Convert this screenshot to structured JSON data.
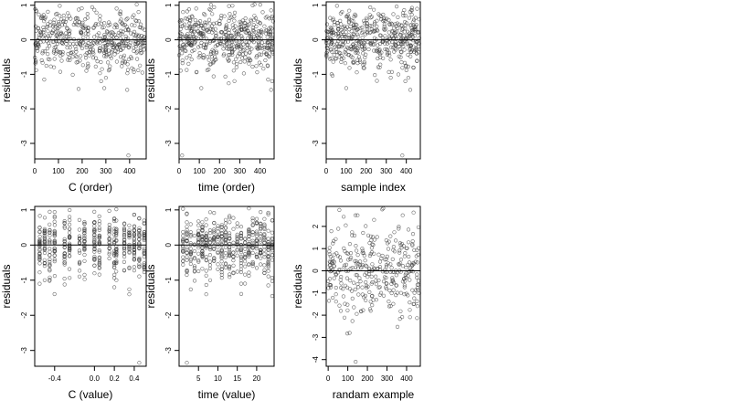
{
  "chart_data": [
    {
      "type": "scatter",
      "xlabel": "C (order)",
      "ylabel": "residuals",
      "xlim": [
        0,
        470
      ],
      "ylim": [
        -3.45,
        1.1
      ],
      "xticks": [
        0,
        100,
        200,
        300,
        400
      ],
      "xtick_labels": [
        "0",
        "100",
        "200",
        "300",
        "400"
      ],
      "yticks": [
        -3,
        -2,
        -1,
        0,
        1
      ],
      "ytick_labels": [
        "-3",
        "-2",
        "-1",
        "0",
        "1"
      ],
      "reference_line_y": 0,
      "points": {
        "n": 470,
        "xmin": 0,
        "xmax": 465,
        "ymean": 0,
        "ysd": 0.42,
        "outliers": [
          [
            280,
            -1.2
          ],
          [
            300,
            -1.1
          ],
          [
            390,
            -1.45
          ],
          [
            395,
            -3.35
          ],
          [
            40,
            -1.15
          ]
        ]
      }
    },
    {
      "type": "scatter",
      "xlabel": "time (order)",
      "ylabel": "residuals",
      "xlim": [
        0,
        470
      ],
      "ylim": [
        -3.45,
        1.1
      ],
      "xticks": [
        0,
        100,
        200,
        300,
        400
      ],
      "xtick_labels": [
        "0",
        "100",
        "200",
        "300",
        "400"
      ],
      "yticks": [
        -3,
        -2,
        -1,
        0,
        1
      ],
      "ytick_labels": [
        "-3",
        "-2",
        "-1",
        "0",
        "1"
      ],
      "reference_line_y": 0,
      "points": {
        "n": 470,
        "xmin": 0,
        "xmax": 465,
        "ymean": 0,
        "ysd": 0.42,
        "outliers": [
          [
            15,
            -3.35
          ],
          [
            110,
            -1.4
          ],
          [
            440,
            -1.15
          ],
          [
            455,
            -1.45
          ],
          [
            460,
            -1.2
          ]
        ]
      }
    },
    {
      "type": "scatter",
      "xlabel": "sample index",
      "ylabel": "residuals",
      "xlim": [
        0,
        470
      ],
      "ylim": [
        -3.45,
        1.1
      ],
      "xticks": [
        0,
        100,
        200,
        300,
        400
      ],
      "xtick_labels": [
        "0",
        "100",
        "200",
        "300",
        "400"
      ],
      "yticks": [
        -3,
        -2,
        -1,
        0,
        1
      ],
      "ytick_labels": [
        "-3",
        "-2",
        "-1",
        "0",
        "1"
      ],
      "reference_line_y": 0,
      "points": {
        "n": 470,
        "xmin": 0,
        "xmax": 465,
        "ymean": 0,
        "ysd": 0.42,
        "outliers": [
          [
            380,
            -3.35
          ],
          [
            100,
            -1.4
          ],
          [
            395,
            -1.2
          ],
          [
            420,
            -1.45
          ],
          [
            410,
            -1.1
          ]
        ]
      }
    },
    {
      "type": "scatter",
      "xlabel": "C (value)",
      "ylabel": "residuals",
      "xlim": [
        -0.6,
        0.52
      ],
      "ylim": [
        -3.45,
        1.1
      ],
      "xticks": [
        -0.4,
        0.0,
        0.2,
        0.4
      ],
      "xtick_labels": [
        "-0.4",
        "0.0",
        "0.2",
        "0.4"
      ],
      "yticks": [
        -3,
        -2,
        -1,
        0,
        1
      ],
      "ytick_labels": [
        "-3",
        "-2",
        "-1",
        "0",
        "1"
      ],
      "reference_line_y": 0,
      "points": {
        "n": 470,
        "x_levels": [
          -0.55,
          -0.5,
          -0.45,
          -0.4,
          -0.3,
          -0.25,
          -0.15,
          -0.1,
          0.0,
          0.05,
          0.15,
          0.2,
          0.22,
          0.3,
          0.35,
          0.4,
          0.45,
          0.5
        ],
        "ymean": 0,
        "ysd": 0.42,
        "outliers": [
          [
            0.2,
            -1.2
          ],
          [
            -0.55,
            -1.1
          ],
          [
            0.35,
            -1.4
          ],
          [
            0.45,
            -3.35
          ]
        ]
      }
    },
    {
      "type": "scatter",
      "xlabel": "time (value)",
      "ylabel": "residuals",
      "xlim": [
        0,
        24.5
      ],
      "ylim": [
        -3.45,
        1.1
      ],
      "xticks": [
        5,
        10,
        15,
        20
      ],
      "xtick_labels": [
        "5",
        "10",
        "15",
        "20"
      ],
      "yticks": [
        -3,
        -2,
        -1,
        0,
        1
      ],
      "ytick_labels": [
        "-3",
        "-2",
        "-1",
        "0",
        "1"
      ],
      "reference_line_y": 0,
      "points": {
        "n": 470,
        "x_levels": [
          1,
          2,
          3,
          4,
          5,
          6,
          7,
          8,
          9,
          10,
          11,
          12,
          13,
          14,
          15,
          16,
          17,
          18,
          19,
          20,
          21,
          22,
          23,
          24
        ],
        "ymean": 0,
        "ysd": 0.42,
        "outliers": [
          [
            2,
            -3.35
          ],
          [
            7,
            -1.4
          ],
          [
            16,
            -1.1
          ],
          [
            24,
            -1.45
          ],
          [
            23,
            -1.15
          ]
        ]
      }
    },
    {
      "type": "scatter",
      "xlabel": "randam example",
      "ylabel": "residuals",
      "xlim": [
        -10,
        470
      ],
      "ylim": [
        -4.3,
        2.9
      ],
      "xticks": [
        0,
        100,
        200,
        300,
        400
      ],
      "xtick_labels": [
        "0",
        "100",
        "200",
        "300",
        "400"
      ],
      "yticks": [
        -4,
        -3,
        -2,
        -1,
        0,
        1,
        2
      ],
      "ytick_labels": [
        "-4",
        "-3",
        "-2",
        "-1",
        "0",
        "1",
        "2"
      ],
      "reference_line_y": 0,
      "points": {
        "n": 340,
        "xmin": 0,
        "xmax": 465,
        "ymean": 0,
        "ysd": 1.0,
        "outliers": [
          [
            140,
            -4.1
          ],
          [
            150,
            2.5
          ],
          [
            380,
            2.5
          ]
        ]
      }
    }
  ]
}
